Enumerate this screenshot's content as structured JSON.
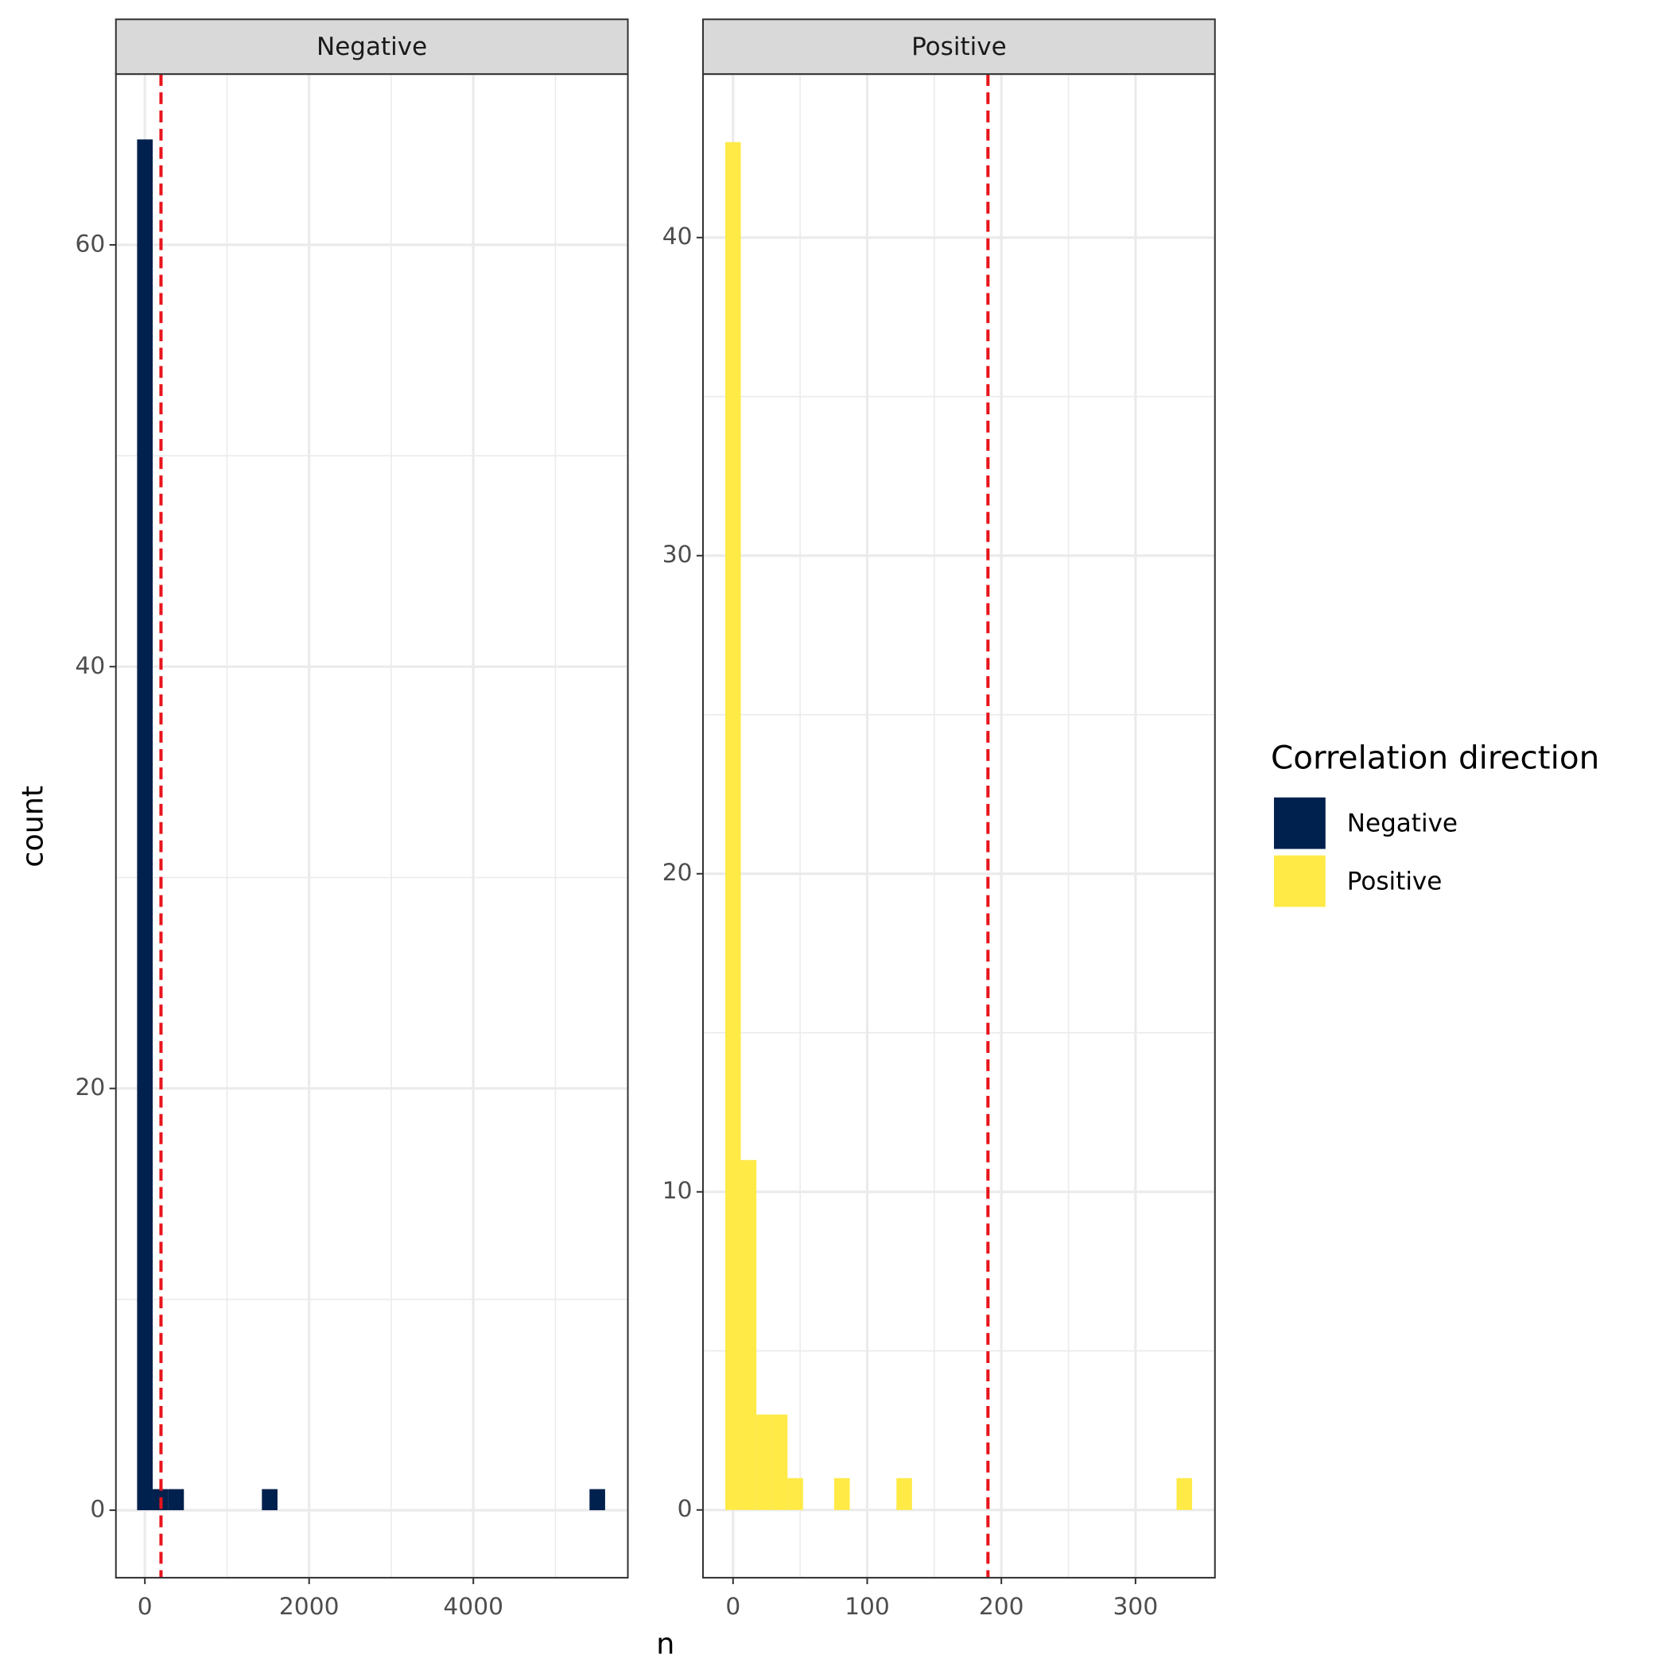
{
  "figure": {
    "xlabel": "n",
    "ylabel": "count",
    "legend_title": "Correlation direction"
  },
  "chart_data": [
    {
      "type": "histogram",
      "title": "Negative",
      "color": "#00204d",
      "bins": [
        -95,
        95,
        285,
        475,
        665,
        855,
        1045,
        1235,
        1425,
        1615,
        1805,
        1995,
        2185,
        2375,
        2565,
        2755,
        2945,
        3135,
        3325,
        3515,
        3705,
        3895,
        4085,
        4275,
        4465,
        4655,
        4845,
        5035,
        5225,
        5415,
        5605
      ],
      "counts": [
        65,
        1,
        1,
        0,
        0,
        0,
        0,
        0,
        1,
        0,
        0,
        0,
        0,
        0,
        0,
        0,
        0,
        0,
        0,
        0,
        0,
        0,
        0,
        0,
        0,
        0,
        0,
        0,
        0,
        1
      ],
      "xlim": [
        -353,
        5882
      ],
      "xticks": [
        0,
        2000,
        4000
      ],
      "minor_xticks": [
        1000,
        3000,
        5000
      ],
      "ylim": [
        -3.2,
        68.1
      ],
      "yticks": [
        0,
        20,
        40,
        60
      ],
      "minor_yticks": [
        10,
        30,
        50
      ],
      "vline": 196,
      "vline_color": "#e8141c",
      "grid": true
    },
    {
      "type": "histogram",
      "title": "Positive",
      "color": "#ffea46",
      "bins": [
        -5.8,
        5.8,
        17.4,
        29,
        40.6,
        52.2,
        63.8,
        75.4,
        87,
        98.6,
        110.2,
        121.8,
        133.4,
        145,
        156.6,
        168.2,
        179.8,
        191.4,
        203,
        214.6,
        226.2,
        237.8,
        249.4,
        261,
        272.6,
        284.2,
        295.8,
        307.4,
        319,
        330.6,
        342.2
      ],
      "counts": [
        43,
        11,
        3,
        3,
        1,
        0,
        0,
        1,
        0,
        0,
        0,
        1,
        0,
        0,
        0,
        0,
        0,
        0,
        0,
        0,
        0,
        0,
        0,
        0,
        0,
        0,
        0,
        0,
        0,
        1
      ],
      "xlim": [
        -22.4,
        359.2
      ],
      "xticks": [
        0,
        100,
        200,
        300
      ],
      "minor_xticks": [
        50,
        150,
        250
      ],
      "ylim": [
        -2.13,
        45.14
      ],
      "yticks": [
        0,
        10,
        20,
        30,
        40
      ],
      "minor_yticks": [
        5,
        15,
        25,
        35
      ],
      "vline": 190,
      "vline_color": "#e8141c",
      "grid": true
    }
  ]
}
